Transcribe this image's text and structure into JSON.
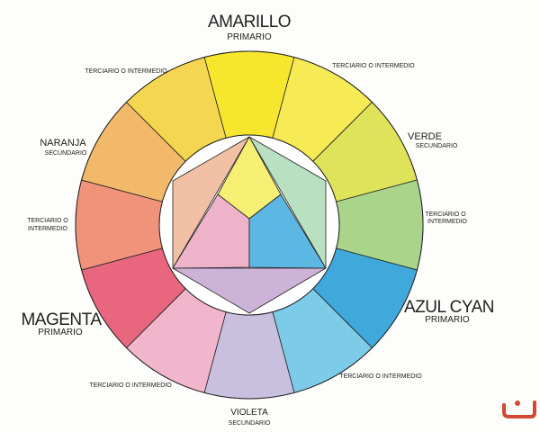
{
  "labels": {
    "amarillo": "AMARILLO",
    "amarillo_type": "PRIMARIO",
    "magenta": "MAGENTA",
    "magenta_type": "PRIMARIO",
    "cyan": "AZUL CYAN",
    "cyan_type": "PRIMARIO",
    "naranja": "NARANJA",
    "naranja_type": "SECUNDARIO",
    "verde": "VERDE",
    "verde_type": "SECUNDARIO",
    "violeta": "VIOLETA",
    "violeta_type": "SECUNDARIO",
    "terciario": "TERCIARIO O INTERMEDIO",
    "terciario_line1": "TERCIARIO O",
    "terciario_line2": "INTERMEDIO"
  },
  "wheel_colors": [
    "#f7e62e",
    "#f6ea55",
    "#dfe35a",
    "#a9d48a",
    "#3fa9dc",
    "#7ccbe8",
    "#c9c0e0",
    "#f1b6cc",
    "#e9677e",
    "#f0937a",
    "#f2b96a",
    "#f5d650"
  ],
  "center_colors": {
    "yellow": "#f7ef74",
    "magenta": "#eeb3c9",
    "cyan": "#5cb7e3",
    "orange": "#f1c0a5",
    "green": "#b9e0c0",
    "violet": "#cdb3d8"
  },
  "logo_color": "#d04a32"
}
